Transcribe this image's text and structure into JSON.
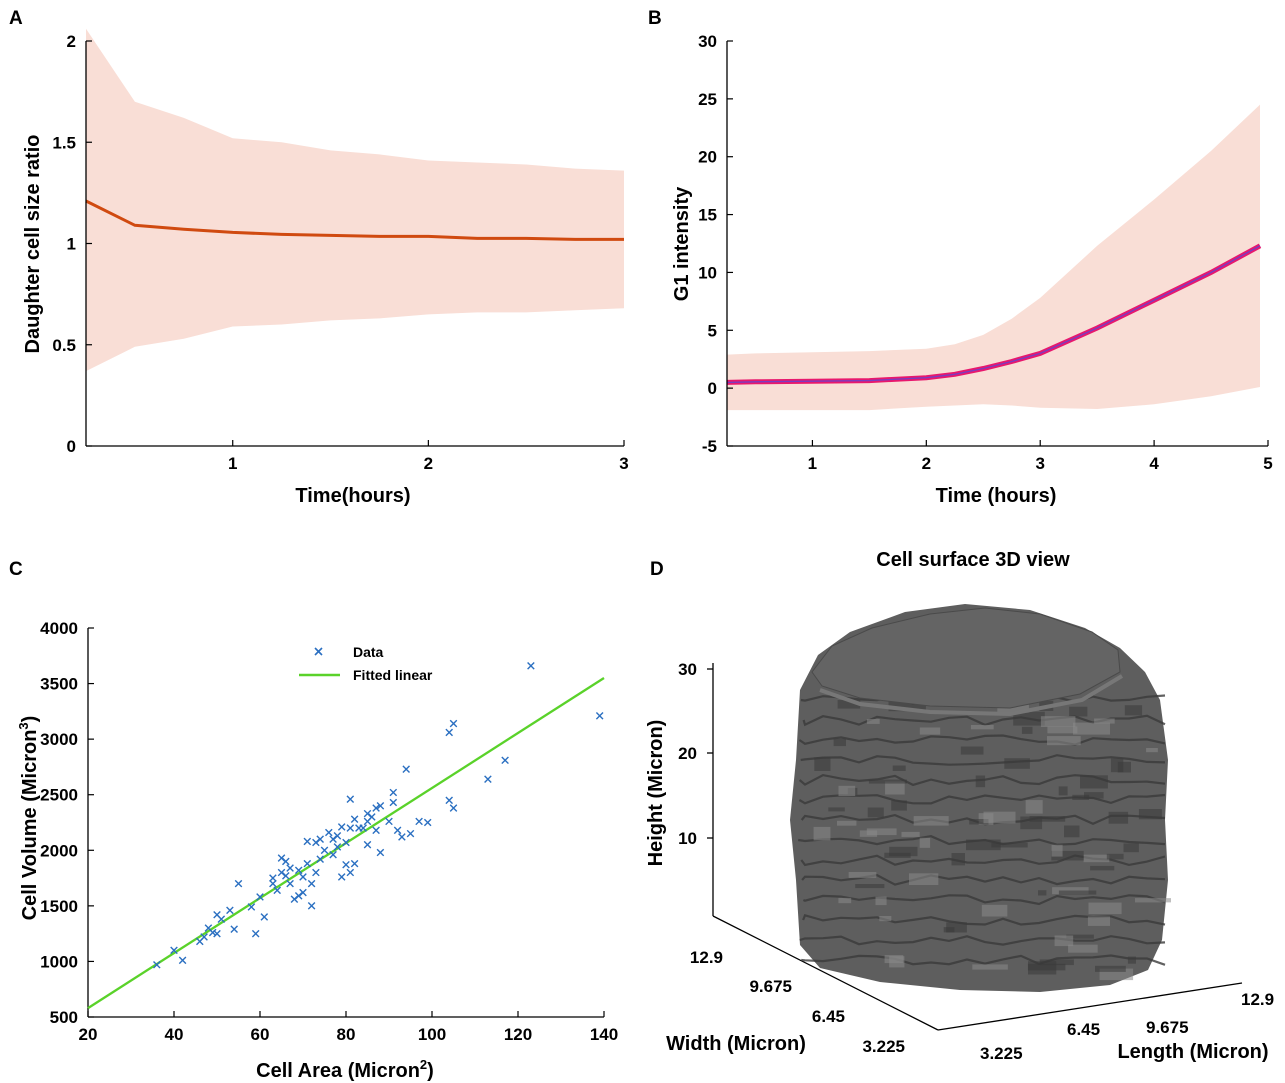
{
  "colors": {
    "a_line": "#d04a10",
    "a_band": "#f9ded6",
    "b_line": "#e8186d",
    "b_line_core": "#7a3cc0",
    "b_band": "#f9ded6",
    "c_points": "#2a6fc1",
    "c_fit": "#5ad22a",
    "d_surface": "#5e5e5e",
    "d_surface_light": "#8a8a8a",
    "d_surface_dark": "#3a3a3a"
  },
  "chart_data": [
    {
      "panel": "A",
      "type": "line",
      "title": "",
      "xlabel": "Time(hours)",
      "ylabel": "Daughter cell size ratio",
      "xlim": [
        0.25,
        3
      ],
      "ylim": [
        0,
        2
      ],
      "xticks": [
        1,
        2,
        3
      ],
      "yticks": [
        0,
        0.5,
        1,
        1.5,
        2
      ],
      "grid": false,
      "x": [
        0.25,
        0.5,
        0.75,
        1.0,
        1.25,
        1.5,
        1.75,
        2.0,
        2.25,
        2.5,
        2.75,
        3.0
      ],
      "mean": [
        1.21,
        1.09,
        1.07,
        1.055,
        1.045,
        1.04,
        1.035,
        1.035,
        1.025,
        1.025,
        1.02,
        1.02
      ],
      "upper": [
        2.06,
        1.7,
        1.62,
        1.52,
        1.5,
        1.46,
        1.44,
        1.41,
        1.4,
        1.39,
        1.37,
        1.36
      ],
      "lower": [
        0.37,
        0.49,
        0.53,
        0.59,
        0.6,
        0.62,
        0.63,
        0.65,
        0.66,
        0.66,
        0.67,
        0.68
      ]
    },
    {
      "panel": "B",
      "type": "line",
      "title": "",
      "xlabel": "Time (hours)",
      "ylabel": "G1 intensity",
      "xlim": [
        0.25,
        5
      ],
      "ylim": [
        -5,
        30
      ],
      "xticks": [
        1,
        2,
        3,
        4,
        5
      ],
      "yticks": [
        -5,
        0,
        5,
        10,
        15,
        20,
        25,
        30
      ],
      "grid": false,
      "x": [
        0.25,
        0.5,
        1.0,
        1.5,
        2.0,
        2.25,
        2.5,
        2.75,
        3.0,
        3.5,
        4.0,
        4.5,
        4.93
      ],
      "mean": [
        0.5,
        0.55,
        0.6,
        0.65,
        0.9,
        1.2,
        1.7,
        2.3,
        3.0,
        5.2,
        7.6,
        10.0,
        12.3
      ],
      "upper": [
        2.9,
        3.0,
        3.1,
        3.2,
        3.4,
        3.8,
        4.6,
        6.0,
        7.8,
        12.3,
        16.3,
        20.5,
        24.5
      ],
      "lower": [
        -1.9,
        -1.9,
        -1.9,
        -1.9,
        -1.6,
        -1.5,
        -1.4,
        -1.5,
        -1.7,
        -1.8,
        -1.4,
        -0.7,
        0.1
      ]
    },
    {
      "panel": "C",
      "type": "scatter",
      "title": "",
      "xlabel_main": "Cell Area (Micron",
      "xlabel_sup": "2",
      "xlabel_end": ")",
      "ylabel_main": "Cell Volume (Micron",
      "ylabel_sup": "3",
      "ylabel_end": ")",
      "xlim": [
        20,
        140
      ],
      "ylim": [
        500,
        4000
      ],
      "xticks": [
        20,
        40,
        60,
        80,
        100,
        120,
        140
      ],
      "yticks": [
        500,
        1000,
        1500,
        2000,
        2500,
        3000,
        3500,
        4000
      ],
      "grid": false,
      "legend_position": "top-right",
      "series": [
        {
          "name": "Data",
          "marker": "x",
          "points": [
            [
              36,
              970
            ],
            [
              40,
              1100
            ],
            [
              42,
              1010
            ],
            [
              46,
              1180
            ],
            [
              47,
              1220
            ],
            [
              48,
              1300
            ],
            [
              49,
              1260
            ],
            [
              50,
              1420
            ],
            [
              50,
              1250
            ],
            [
              51,
              1380
            ],
            [
              53,
              1460
            ],
            [
              54,
              1290
            ],
            [
              55,
              1700
            ],
            [
              58,
              1490
            ],
            [
              59,
              1250
            ],
            [
              60,
              1580
            ],
            [
              61,
              1400
            ],
            [
              63,
              1750
            ],
            [
              63,
              1700
            ],
            [
              64,
              1640
            ],
            [
              65,
              1930
            ],
            [
              65,
              1800
            ],
            [
              66,
              1900
            ],
            [
              66,
              1770
            ],
            [
              67,
              1840
            ],
            [
              67,
              1700
            ],
            [
              68,
              1560
            ],
            [
              69,
              1820
            ],
            [
              69,
              1590
            ],
            [
              70,
              1760
            ],
            [
              70,
              1620
            ],
            [
              71,
              2080
            ],
            [
              71,
              1880
            ],
            [
              72,
              1700
            ],
            [
              72,
              1500
            ],
            [
              73,
              2070
            ],
            [
              73,
              1800
            ],
            [
              74,
              2100
            ],
            [
              74,
              1920
            ],
            [
              75,
              2000
            ],
            [
              76,
              2160
            ],
            [
              77,
              2100
            ],
            [
              77,
              1960
            ],
            [
              78,
              2130
            ],
            [
              78,
              2030
            ],
            [
              79,
              2210
            ],
            [
              79,
              1760
            ],
            [
              80,
              2070
            ],
            [
              80,
              1870
            ],
            [
              81,
              2460
            ],
            [
              81,
              2200
            ],
            [
              81,
              1800
            ],
            [
              82,
              2280
            ],
            [
              82,
              1880
            ],
            [
              83,
              2200
            ],
            [
              84,
              2200
            ],
            [
              85,
              2330
            ],
            [
              85,
              2260
            ],
            [
              85,
              2050
            ],
            [
              86,
              2300
            ],
            [
              87,
              2380
            ],
            [
              87,
              2180
            ],
            [
              88,
              2400
            ],
            [
              88,
              1980
            ],
            [
              90,
              2260
            ],
            [
              91,
              2520
            ],
            [
              91,
              2430
            ],
            [
              92,
              2180
            ],
            [
              93,
              2120
            ],
            [
              94,
              2730
            ],
            [
              95,
              2150
            ],
            [
              97,
              2260
            ],
            [
              99,
              2250
            ],
            [
              104,
              2450
            ],
            [
              104,
              3060
            ],
            [
              105,
              3140
            ],
            [
              105,
              2380
            ],
            [
              113,
              2640
            ],
            [
              117,
              2810
            ],
            [
              123,
              3660
            ],
            [
              139,
              3210
            ]
          ]
        },
        {
          "name": "Fitted linear",
          "type": "line",
          "x": [
            20,
            140
          ],
          "y": [
            580,
            3550
          ]
        }
      ]
    },
    {
      "panel": "D",
      "type": "surface3d",
      "title": "Cell surface 3D view",
      "xlabel": "Length (Micron)",
      "ylabel": "Width (Micron)",
      "zlabel": "Height (Micron)",
      "length_ticks": [
        "3.225",
        "6.45",
        "9.675",
        "12.9"
      ],
      "width_ticks": [
        "3.225",
        "6.45",
        "9.675",
        "12.9"
      ],
      "height_ticks": [
        "10",
        "20",
        "30"
      ]
    }
  ],
  "panels": {
    "a": "A",
    "b": "B",
    "c": "C",
    "d": "D"
  }
}
